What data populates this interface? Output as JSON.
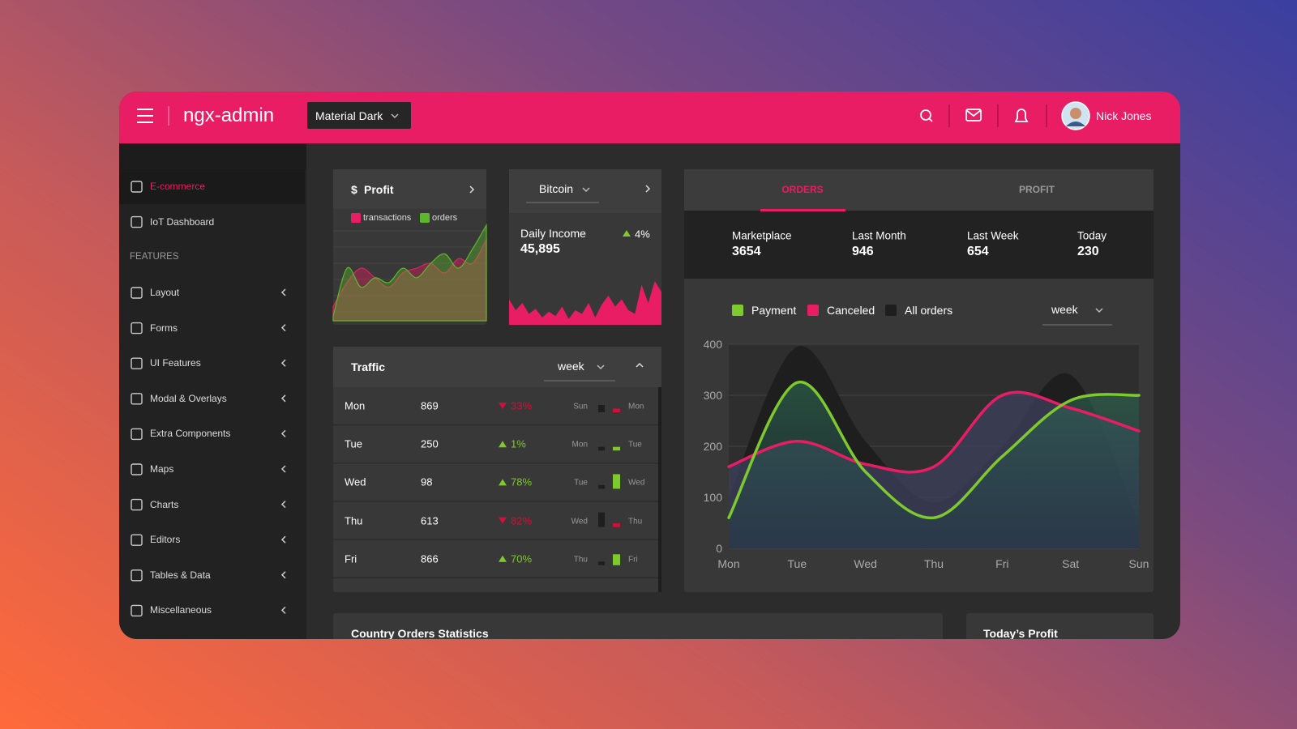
{
  "header": {
    "brand": "ngx-admin",
    "theme": "Material Dark",
    "user": "Nick Jones"
  },
  "sidebar": {
    "items": [
      "E-commerce",
      "IoT Dashboard"
    ],
    "section": "FEATURES",
    "features": [
      "Layout",
      "Forms",
      "UI Features",
      "Modal & Overlays",
      "Extra Components",
      "Maps",
      "Charts",
      "Editors",
      "Tables & Data",
      "Miscellaneous"
    ]
  },
  "profit": {
    "currency": "$",
    "title": "Profit",
    "series": [
      {
        "name": "transactions",
        "color": "#e91d63",
        "values": [
          15,
          40,
          55,
          45,
          35,
          50,
          55,
          60,
          50,
          65,
          60,
          85
        ]
      },
      {
        "name": "orders",
        "color": "#5cb82a",
        "values": [
          5,
          55,
          35,
          45,
          40,
          55,
          45,
          60,
          70,
          55,
          75,
          100
        ]
      }
    ]
  },
  "bitcoin": {
    "select": "Bitcoin",
    "label": "Daily Income",
    "value": "45,895",
    "change": "4%",
    "trend": "up",
    "color": "#e91d63",
    "values": [
      35,
      20,
      30,
      15,
      22,
      10,
      18,
      12,
      25,
      8,
      20,
      15,
      30,
      10,
      28,
      40,
      25,
      35,
      20,
      15,
      55,
      30,
      60,
      45
    ]
  },
  "traffic": {
    "title": "Traffic",
    "period": "week",
    "rows": [
      {
        "day": "Mon",
        "value": 869,
        "change": "33%",
        "trend": "down",
        "prev": "Sun",
        "bars": [
          2,
          1
        ]
      },
      {
        "day": "Tue",
        "value": 250,
        "change": "1%",
        "trend": "up",
        "prev": "Mon",
        "bars": [
          1,
          1
        ]
      },
      {
        "day": "Wed",
        "value": 98,
        "change": "78%",
        "trend": "up",
        "prev": "Tue",
        "bars": [
          1,
          4
        ]
      },
      {
        "day": "Thu",
        "value": 613,
        "change": "82%",
        "trend": "down",
        "prev": "Wed",
        "bars": [
          4,
          1
        ]
      },
      {
        "day": "Fri",
        "value": 866,
        "change": "70%",
        "trend": "up",
        "prev": "Thu",
        "bars": [
          1,
          3
        ]
      }
    ]
  },
  "orders": {
    "tabs": [
      "ORDERS",
      "PROFIT"
    ],
    "stats": [
      {
        "label": "Marketplace",
        "value": 3654
      },
      {
        "label": "Last Month",
        "value": 946
      },
      {
        "label": "Last Week",
        "value": 654
      },
      {
        "label": "Today",
        "value": 230
      }
    ],
    "period": "week"
  },
  "chart_data": {
    "type": "line",
    "categories": [
      "Mon",
      "Tue",
      "Wed",
      "Thu",
      "Fri",
      "Sat",
      "Sun"
    ],
    "series": [
      {
        "name": "Payment",
        "color": "#7dc92e",
        "values": [
          60,
          325,
          150,
          60,
          180,
          290,
          300
        ]
      },
      {
        "name": "Canceled",
        "color": "#e91d63",
        "values": [
          160,
          210,
          165,
          160,
          300,
          275,
          230
        ]
      },
      {
        "name": "All orders",
        "color": "#1e1e1e",
        "values": [
          100,
          395,
          210,
          90,
          200,
          340,
          50
        ]
      }
    ],
    "ylim": [
      0,
      400
    ],
    "yticks": [
      0,
      100,
      200,
      300,
      400
    ],
    "grid": true
  },
  "bottom": {
    "cards": [
      "Country Orders Statistics",
      "Today’s Profit"
    ]
  }
}
